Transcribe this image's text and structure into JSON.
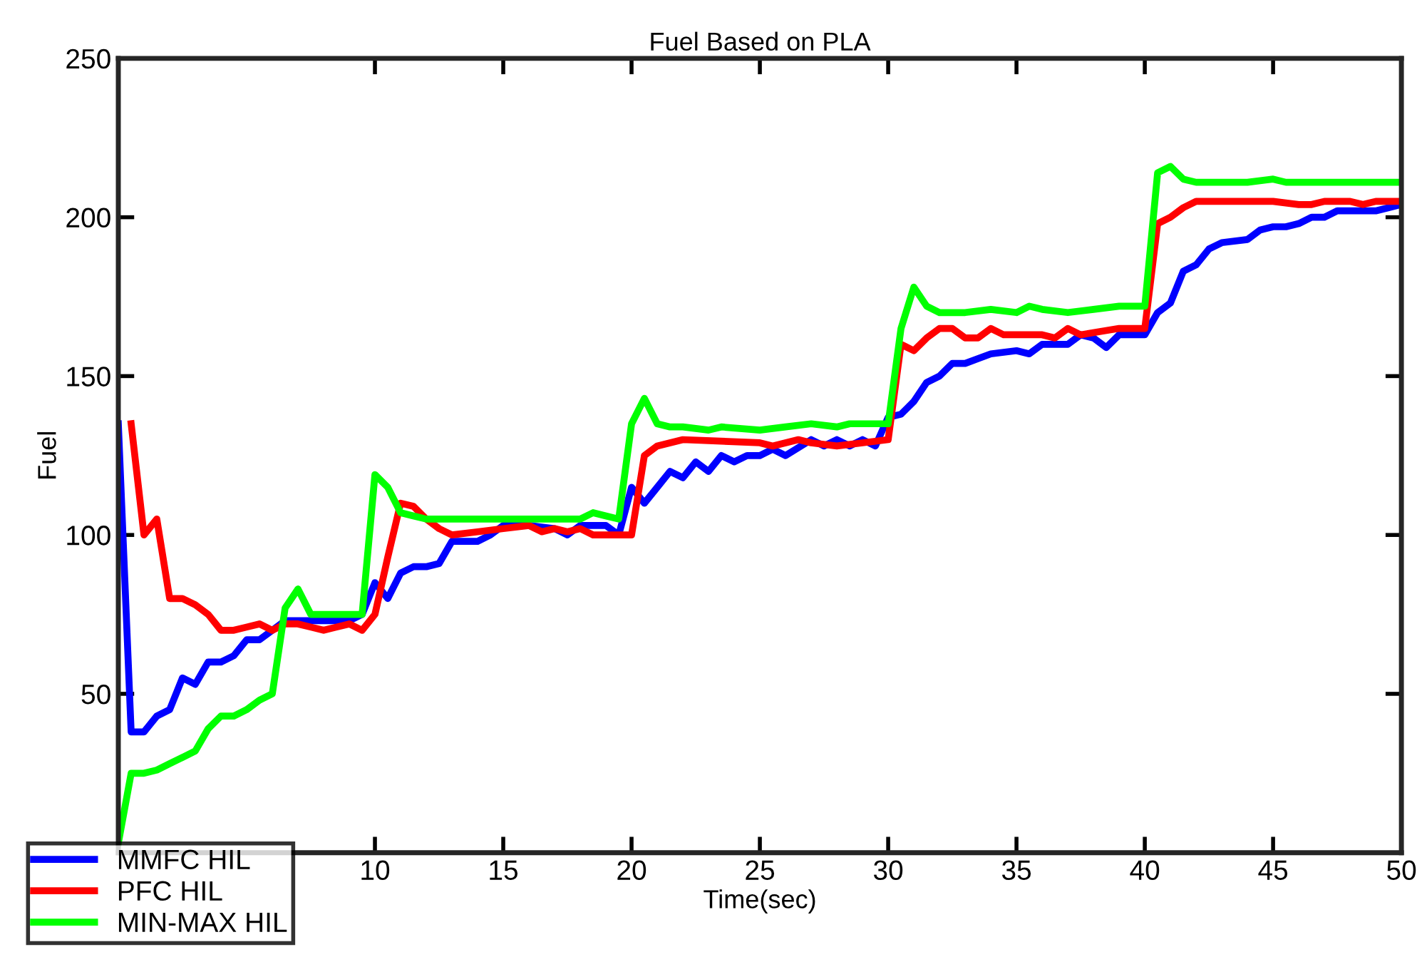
{
  "chart_data": {
    "type": "line",
    "title": "Fuel Based on PLA",
    "xlabel": "Time(sec)",
    "ylabel": "Fuel",
    "xlim": [
      0,
      50
    ],
    "ylim": [
      0,
      250
    ],
    "xticks": [
      10,
      15,
      20,
      25,
      30,
      35,
      40,
      45,
      50
    ],
    "yticks": [
      50,
      100,
      150,
      200,
      250
    ],
    "grid": false,
    "legend": "bottom left",
    "marker": "none",
    "line_style": "solid",
    "series": [
      {
        "name": "MMFC HIL",
        "color": "#0000ff",
        "x": [
          0,
          0.5,
          1,
          1.5,
          2,
          2.5,
          3,
          3.5,
          4,
          4.5,
          5,
          5.5,
          6,
          6.5,
          9,
          9.5,
          10,
          10.5,
          11,
          11.5,
          12,
          12.5,
          13,
          14,
          14.5,
          15,
          16,
          17,
          17.5,
          18,
          19,
          19.5,
          20,
          20.5,
          21,
          21.5,
          22,
          22.5,
          23,
          23.5,
          24,
          24.5,
          25,
          25.5,
          26,
          27,
          27.5,
          28,
          28.5,
          29,
          29.5,
          30,
          30.5,
          31,
          31.5,
          32,
          32.5,
          33,
          34,
          35,
          35.5,
          36,
          37,
          37.5,
          38,
          38.5,
          39,
          40,
          40.5,
          41,
          41.5,
          42,
          42.5,
          43,
          44,
          44.5,
          45,
          45.5,
          46,
          46.5,
          47,
          47.5,
          49,
          49.5,
          50
        ],
        "values": [
          135,
          38,
          38,
          43,
          45,
          55,
          53,
          60,
          60,
          62,
          67,
          67,
          70,
          73,
          73,
          75,
          85,
          80,
          88,
          90,
          90,
          91,
          98,
          98,
          100,
          103,
          103,
          102,
          100,
          103,
          103,
          100,
          115,
          110,
          115,
          120,
          118,
          123,
          120,
          125,
          123,
          125,
          125,
          127,
          125,
          130,
          128,
          130,
          128,
          130,
          128,
          137,
          138,
          142,
          148,
          150,
          154,
          154,
          157,
          158,
          157,
          160,
          160,
          163,
          162,
          159,
          163,
          163,
          170,
          173,
          183,
          185,
          190,
          192,
          193,
          196,
          197,
          197,
          198,
          200,
          200,
          202,
          202,
          203,
          204
        ]
      },
      {
        "name": "PFC HIL",
        "color": "#ff0000",
        "x": [
          0.5,
          1,
          1.5,
          2,
          2.5,
          3,
          3.5,
          4,
          4.5,
          5,
          5.5,
          6,
          6.5,
          7,
          7.5,
          8,
          8.5,
          9,
          9.5,
          10,
          10.5,
          11,
          11.5,
          12,
          12.5,
          13,
          14,
          15,
          16,
          16.5,
          17,
          17.5,
          18,
          18.5,
          20,
          20.5,
          21,
          21.5,
          22,
          25,
          25.5,
          26,
          26.5,
          27,
          28,
          29,
          30,
          30.5,
          31,
          31.5,
          32,
          32.5,
          33,
          33.5,
          34,
          34.5,
          36,
          36.5,
          37,
          37.5,
          39,
          40,
          40.5,
          41,
          41.5,
          42,
          45,
          46,
          46.5,
          47,
          48,
          48.5,
          49,
          50
        ],
        "values": [
          135,
          100,
          105,
          80,
          80,
          78,
          75,
          70,
          70,
          71,
          72,
          70,
          72,
          72,
          71,
          70,
          71,
          72,
          70,
          75,
          93,
          110,
          109,
          105,
          102,
          100,
          101,
          102,
          103,
          101,
          102,
          101,
          102,
          100,
          100,
          125,
          128,
          129,
          130,
          129,
          128,
          129,
          130,
          129,
          128,
          129,
          130,
          160,
          158,
          162,
          165,
          165,
          162,
          162,
          165,
          163,
          163,
          162,
          165,
          163,
          165,
          165,
          198,
          200,
          203,
          205,
          205,
          204,
          204,
          205,
          205,
          204,
          205,
          205
        ]
      },
      {
        "name": "MIN-MAX HIL",
        "color": "#00ff00",
        "x": [
          0,
          0.5,
          1,
          1.5,
          2,
          2.5,
          3,
          3.5,
          4,
          4.5,
          5,
          5.5,
          6,
          6.5,
          7,
          7.5,
          9.5,
          10,
          10.5,
          11,
          11.5,
          12,
          18,
          18.5,
          19,
          19.5,
          20,
          20.5,
          21,
          21.5,
          22,
          23,
          23.5,
          25,
          26,
          27,
          28,
          28.5,
          30,
          30.5,
          31,
          31.5,
          32,
          33,
          34,
          35,
          35.5,
          36,
          37,
          38,
          39,
          40,
          40.5,
          41,
          41.5,
          42,
          44,
          45,
          45.5,
          50
        ],
        "values": [
          3,
          25,
          25,
          26,
          28,
          30,
          32,
          39,
          43,
          43,
          45,
          48,
          50,
          77,
          83,
          75,
          75,
          119,
          115,
          107,
          106,
          105,
          105,
          107,
          106,
          105,
          135,
          143,
          135,
          134,
          134,
          133,
          134,
          133,
          134,
          135,
          134,
          135,
          135,
          165,
          178,
          172,
          170,
          170,
          171,
          170,
          172,
          171,
          170,
          171,
          172,
          172,
          214,
          216,
          212,
          211,
          211,
          212,
          211,
          211
        ]
      }
    ]
  }
}
